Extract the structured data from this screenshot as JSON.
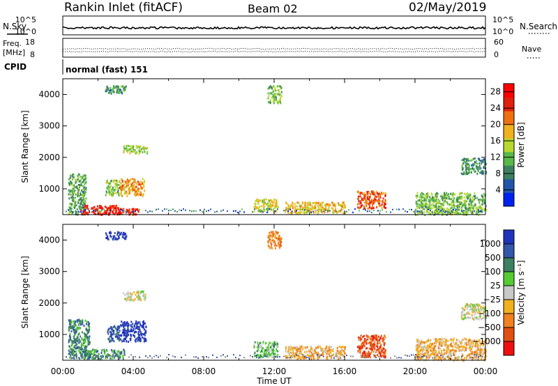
{
  "header": {
    "station": "Rankin Inlet (fitACF)",
    "beam": "Beam 02",
    "date": "02/May/2019"
  },
  "strip": {
    "nsky_label": "N.Sky",
    "nsearch_label": "N.Search",
    "freq_label": "Freq.",
    "mhz_label": "[MHz]",
    "nave_label": "Nave",
    "cpid_label": "CPID",
    "cpid_value": "normal (fast) 151",
    "noise_left_ticks": [
      "10^5",
      "10^0"
    ],
    "noise_right_ticks": [
      "10^5",
      "10^0"
    ],
    "freq_left_ticks": [
      "18",
      "8"
    ],
    "nave_right_ticks": [
      "60",
      "0"
    ]
  },
  "colors": {
    "power": [
      "#0022ee",
      "#2255aa",
      "#3d8060",
      "#58b848",
      "#b8d830",
      "#f0b020",
      "#f07010",
      "#e02010",
      "#ff0000"
    ],
    "velocity": [
      "#2233bb",
      "#3355aa",
      "#3d8060",
      "#55cc33",
      "#c8c8c8",
      "#f0b020",
      "#f08020",
      "#e05010",
      "#ee1010"
    ]
  },
  "chart_data": [
    {
      "type": "heatmap",
      "name": "power-panel",
      "xlabel": "Time UT",
      "ylabel": "Slant Range [km]",
      "x_ticks": [
        "00:00",
        "04:00",
        "08:00",
        "12:00",
        "16:00",
        "20:00",
        "00:00"
      ],
      "xlim_hours": [
        0,
        24
      ],
      "y_ticks": [
        1000,
        2000,
        3000,
        4000
      ],
      "ylim_km": [
        180,
        4500
      ],
      "colorbar": {
        "label": "Power [dB]",
        "ticks": [
          4,
          8,
          12,
          16,
          20,
          24,
          28
        ],
        "range": [
          0,
          30
        ]
      },
      "regions": [
        {
          "t": [
            0.3,
            1.3
          ],
          "r": [
            200,
            1500
          ],
          "v": 10
        },
        {
          "t": [
            1.0,
            3.2
          ],
          "r": [
            200,
            500
          ],
          "v": 28
        },
        {
          "t": [
            3.0,
            4.3
          ],
          "r": [
            200,
            400
          ],
          "v": 27
        },
        {
          "t": [
            3.2,
            4.6
          ],
          "r": [
            800,
            1350
          ],
          "v": 20
        },
        {
          "t": [
            2.4,
            3.2
          ],
          "r": [
            800,
            1300
          ],
          "v": 13
        },
        {
          "t": [
            3.4,
            4.8
          ],
          "r": [
            2150,
            2400
          ],
          "v": 13
        },
        {
          "t": [
            2.4,
            3.6
          ],
          "r": [
            4050,
            4300
          ],
          "v": 9
        },
        {
          "t": [
            11.6,
            12.4
          ],
          "r": [
            3750,
            4300
          ],
          "v": 12
        },
        {
          "t": [
            10.8,
            12.2
          ],
          "r": [
            300,
            700
          ],
          "v": 16
        },
        {
          "t": [
            12.6,
            16.0
          ],
          "r": [
            250,
            600
          ],
          "v": 18
        },
        {
          "t": [
            16.7,
            18.3
          ],
          "r": [
            400,
            950
          ],
          "v": 24
        },
        {
          "t": [
            20.0,
            24.0
          ],
          "r": [
            200,
            900
          ],
          "v": 12
        },
        {
          "t": [
            22.6,
            24.0
          ],
          "r": [
            1500,
            2000
          ],
          "v": 9
        }
      ]
    },
    {
      "type": "heatmap",
      "name": "velocity-panel",
      "xlabel": "Time UT",
      "ylabel": "Slant Range [km]",
      "x_ticks": [
        "00:00",
        "04:00",
        "08:00",
        "12:00",
        "16:00",
        "20:00",
        "00:00"
      ],
      "xlim_hours": [
        0,
        24
      ],
      "y_ticks": [
        1000,
        2000,
        3000,
        4000
      ],
      "ylim_km": [
        180,
        4500
      ],
      "colorbar": {
        "label": "Velocity [m s⁻¹]",
        "ticks": [
          "1000",
          "500",
          "100",
          "25",
          "−25",
          "−100",
          "−500",
          "−1000"
        ]
      },
      "regions": [
        {
          "t": [
            0.3,
            1.5
          ],
          "r": [
            250,
            1500
          ],
          "v": 2
        },
        {
          "t": [
            1.0,
            3.5
          ],
          "r": [
            250,
            550
          ],
          "v": 2
        },
        {
          "t": [
            3.2,
            4.7
          ],
          "r": [
            800,
            1450
          ],
          "v": 0
        },
        {
          "t": [
            2.5,
            3.2
          ],
          "r": [
            800,
            1300
          ],
          "v": 1
        },
        {
          "t": [
            3.4,
            4.7
          ],
          "r": [
            2100,
            2400
          ],
          "v": 4
        },
        {
          "t": [
            2.4,
            3.6
          ],
          "r": [
            4050,
            4300
          ],
          "v": 0
        },
        {
          "t": [
            11.6,
            12.4
          ],
          "r": [
            3750,
            4300
          ],
          "v": 6
        },
        {
          "t": [
            10.8,
            12.2
          ],
          "r": [
            300,
            800
          ],
          "v": 3
        },
        {
          "t": [
            12.6,
            16.0
          ],
          "r": [
            250,
            650
          ],
          "v": 5
        },
        {
          "t": [
            16.7,
            18.3
          ],
          "r": [
            300,
            1000
          ],
          "v": 7
        },
        {
          "t": [
            20.0,
            24.0
          ],
          "r": [
            200,
            900
          ],
          "v": 5
        },
        {
          "t": [
            22.6,
            24.0
          ],
          "r": [
            1500,
            2000
          ],
          "v": 4
        }
      ]
    }
  ]
}
